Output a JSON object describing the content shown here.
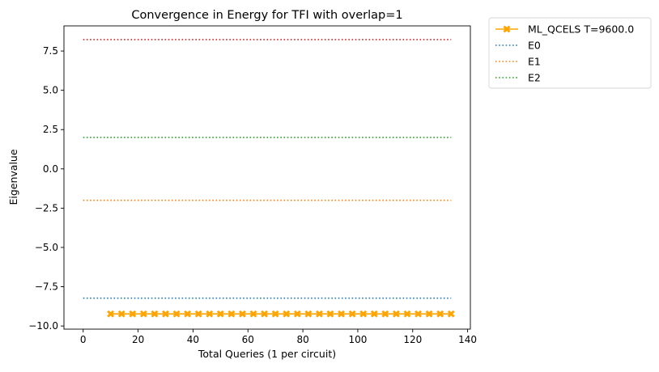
{
  "chart_data": {
    "type": "line",
    "title": "Convergence in Energy for TFI with overlap=1",
    "xlabel": "Total Queries (1 per circuit)",
    "ylabel": "Eigenvalue",
    "xlim": [
      -7,
      141
    ],
    "ylim": [
      -10.2,
      9.1
    ],
    "x_ticks": [
      0,
      20,
      40,
      60,
      80,
      100,
      120,
      140
    ],
    "y_ticks": [
      -10.0,
      -7.5,
      -5.0,
      -2.5,
      0.0,
      2.5,
      5.0,
      7.5
    ],
    "x_tick_labels": [
      "0",
      "20",
      "40",
      "60",
      "80",
      "100",
      "120",
      "140"
    ],
    "y_tick_labels": [
      "−10.0",
      "−7.5",
      "−5.0",
      "−2.5",
      "0.0",
      "2.5",
      "5.0",
      "7.5"
    ],
    "grid": false,
    "legend_position": "outside upper right",
    "series": [
      {
        "name": "ML_QCELS T=9600.0",
        "style": "solid",
        "marker": "X",
        "color": "#ffa500",
        "x": [
          10,
          14,
          18,
          22,
          26,
          30,
          34,
          38,
          42,
          46,
          50,
          54,
          58,
          62,
          66,
          70,
          74,
          78,
          82,
          86,
          90,
          94,
          98,
          102,
          106,
          110,
          114,
          118,
          122,
          126,
          130,
          134
        ],
        "y": [
          -9.23,
          -9.23,
          -9.23,
          -9.23,
          -9.23,
          -9.23,
          -9.23,
          -9.23,
          -9.23,
          -9.23,
          -9.23,
          -9.23,
          -9.23,
          -9.23,
          -9.23,
          -9.23,
          -9.23,
          -9.23,
          -9.23,
          -9.23,
          -9.23,
          -9.23,
          -9.23,
          -9.23,
          -9.23,
          -9.23,
          -9.23,
          -9.23,
          -9.23,
          -9.23,
          -9.23,
          -9.23
        ]
      },
      {
        "name": "E0",
        "style": "dotted",
        "color": "#1f77b4",
        "x": [
          0,
          134
        ],
        "y": [
          -8.23,
          -8.23
        ]
      },
      {
        "name": "E1",
        "style": "dotted",
        "color": "#ff7f0e",
        "x": [
          0,
          134
        ],
        "y": [
          -2.0,
          -2.0
        ]
      },
      {
        "name": "E2",
        "style": "dotted",
        "color": "#2ca02c",
        "x": [
          0,
          134
        ],
        "y": [
          2.0,
          2.0
        ]
      },
      {
        "style": "dotted",
        "color": "#d62728",
        "x": [
          0,
          134
        ],
        "y": [
          8.23,
          8.23
        ]
      }
    ]
  }
}
